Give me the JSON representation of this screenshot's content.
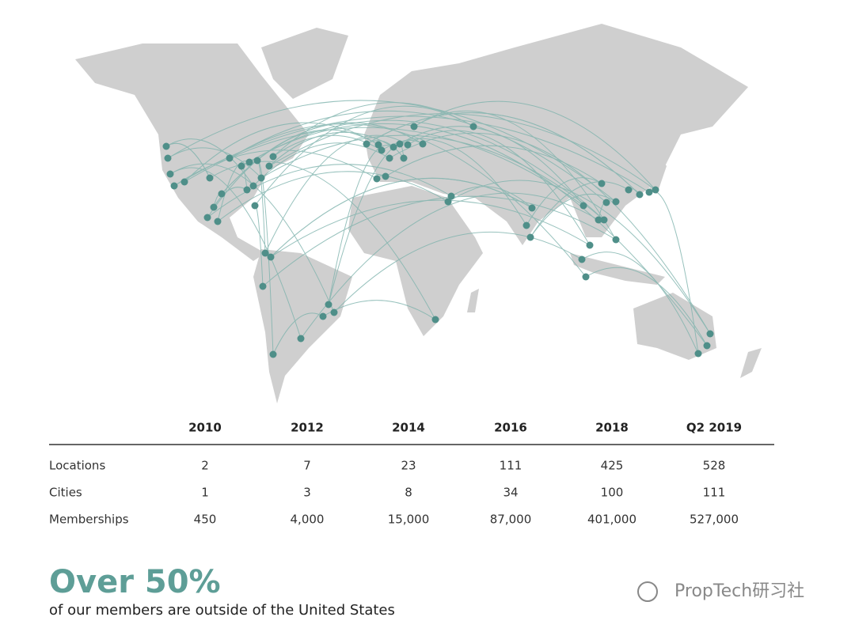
{
  "table": {
    "header": [
      "2010",
      "2012",
      "2014",
      "2016",
      "2018",
      "Q2 2019"
    ],
    "rows": [
      {
        "label": "Locations",
        "values": [
          "2",
          "7",
          "23",
          "111",
          "425",
          "528"
        ]
      },
      {
        "label": "Cities",
        "values": [
          "1",
          "3",
          "8",
          "34",
          "100",
          "111"
        ]
      },
      {
        "label": "Memberships",
        "values": [
          "450",
          "4,000",
          "15,000",
          "87,000",
          "401,000",
          "527,000"
        ]
      }
    ]
  },
  "headline": "Over 50%",
  "subheadline": "of our members are outside of the United States",
  "watermark": "PropTech研习社"
}
